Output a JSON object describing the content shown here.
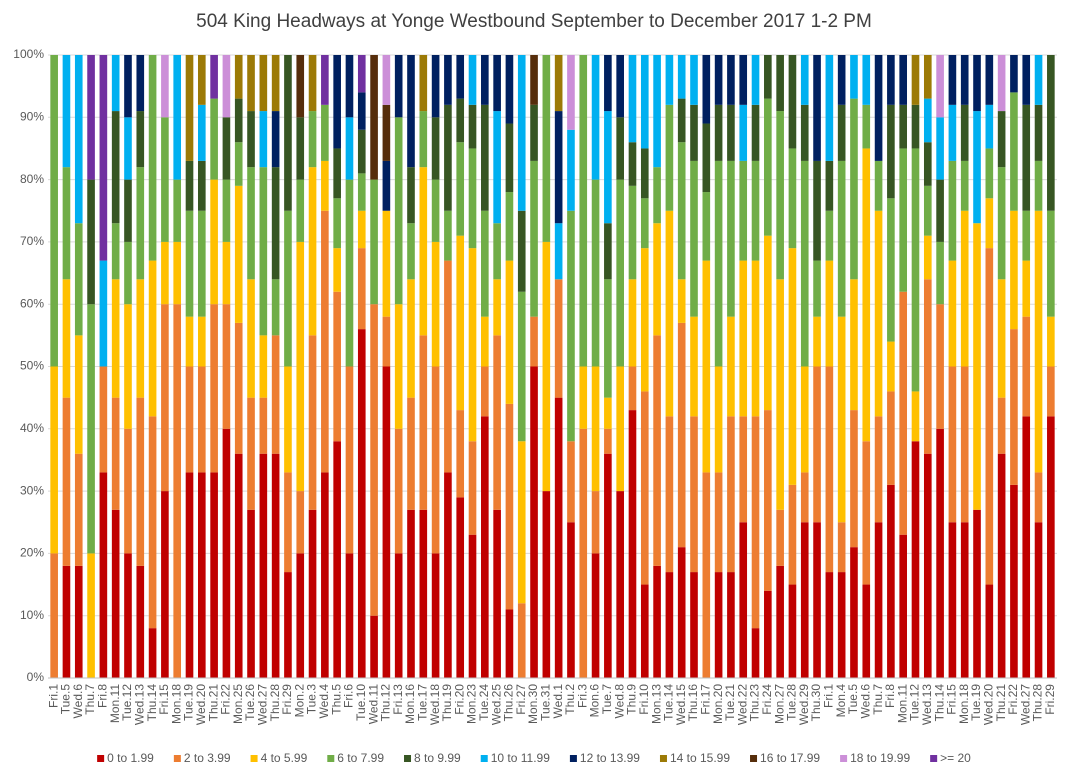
{
  "chart_data": {
    "type": "stacked_bar_100",
    "title": "504 King Headways at Yonge Westbound September to December 2017 1-2 PM",
    "categories": [
      "Fri.1",
      "Tue.5",
      "Wed.6",
      "Thu.7",
      "Fri.8",
      "Mon.11",
      "Tue.12",
      "Wed.13",
      "Thu.14",
      "Fri.15",
      "Mon.18",
      "Tue.19",
      "Wed.20",
      "Thu.21",
      "Fri.22",
      "Mon.25",
      "Tue.26",
      "Wed.27",
      "Thu.28",
      "Fri.29",
      "Mon.2",
      "Tue.3",
      "Wed.4",
      "Thu.5",
      "Fri.6",
      "Tue.10",
      "Wed.11",
      "Thu.12",
      "Fri.13",
      "Mon.16",
      "Tue.17",
      "Wed.18",
      "Thu.19",
      "Fri.20",
      "Mon.23",
      "Tue.24",
      "Wed.25",
      "Thu.26",
      "Fri.27",
      "Mon.30",
      "Tue.31",
      "Wed.1",
      "Thu.2",
      "Fri.3",
      "Mon.6",
      "Tue.7",
      "Wed.8",
      "Thu.9",
      "Fri.10",
      "Mon.13",
      "Tue.14",
      "Wed.15",
      "Thu.16",
      "Fri.17",
      "Mon.20",
      "Tue.21",
      "Wed.22",
      "Thu.23",
      "Fri.24",
      "Mon.27",
      "Tue.28",
      "Wed.29",
      "Thu.30",
      "Fri.1",
      "Mon.4",
      "Tue.5",
      "Wed.6",
      "Thu.7",
      "Fri.8",
      "Mon.11",
      "Tue.12",
      "Wed.13",
      "Thu.14",
      "Fri.15",
      "Mon.18",
      "Tue.19",
      "Wed.20",
      "Thu.21",
      "Fri.22",
      "Wed.27",
      "Thu.28",
      "Fri.29"
    ],
    "series": [
      {
        "name": "0 to 1.99",
        "color": "#c00000",
        "values": [
          0,
          18,
          18,
          0,
          33,
          27,
          20,
          18,
          8,
          30,
          0,
          33,
          33,
          33,
          40,
          36,
          27,
          36,
          36,
          17,
          20,
          27,
          33,
          38,
          20,
          56,
          10,
          50,
          20,
          27,
          27,
          20,
          33,
          29,
          23,
          42,
          27,
          11,
          0,
          50,
          30,
          45,
          25,
          0,
          20,
          36,
          30,
          43,
          15,
          18,
          17,
          21,
          17,
          0,
          17,
          17,
          25,
          8,
          14,
          18,
          15,
          25,
          25,
          17,
          17,
          21,
          15,
          25,
          31,
          23,
          38,
          36,
          40,
          25,
          25,
          27,
          15,
          36,
          31,
          42,
          25,
          42
        ]
      },
      {
        "name": "2 to 3.99",
        "color": "#ed7d31",
        "values": [
          20,
          27,
          18,
          0,
          17,
          18,
          20,
          27,
          34,
          30,
          60,
          17,
          17,
          27,
          20,
          21,
          18,
          9,
          19,
          16,
          10,
          28,
          42,
          24,
          30,
          13,
          50,
          8,
          20,
          18,
          28,
          30,
          34,
          14,
          15,
          8,
          28,
          33,
          12,
          8,
          0,
          19,
          13,
          40,
          10,
          4,
          0,
          7,
          31,
          37,
          25,
          36,
          25,
          33,
          16,
          25,
          17,
          34,
          29,
          9,
          16,
          8,
          25,
          33,
          8,
          22,
          23,
          17,
          15,
          39,
          0,
          28,
          20,
          25,
          25,
          0,
          54,
          9,
          25,
          16,
          8,
          8
        ]
      },
      {
        "name": "4 to 5.99",
        "color": "#ffc000",
        "values": [
          30,
          19,
          19,
          20,
          0,
          19,
          20,
          19,
          25,
          10,
          10,
          8,
          8,
          20,
          10,
          22,
          19,
          10,
          0,
          17,
          40,
          27,
          8,
          7,
          0,
          6,
          0,
          17,
          20,
          19,
          27,
          20,
          0,
          28,
          31,
          8,
          9,
          23,
          26,
          0,
          40,
          0,
          0,
          10,
          20,
          5,
          20,
          14,
          23,
          18,
          33,
          7,
          16,
          34,
          17,
          16,
          25,
          25,
          28,
          37,
          38,
          17,
          8,
          17,
          33,
          21,
          47,
          33,
          8,
          0,
          8,
          7,
          0,
          17,
          25,
          46,
          8,
          19,
          19,
          9,
          42,
          8
        ]
      },
      {
        "name": "6 to 7.99",
        "color": "#70ad47",
        "values": [
          50,
          18,
          18,
          40,
          0,
          9,
          10,
          18,
          33,
          20,
          10,
          17,
          17,
          13,
          10,
          7,
          18,
          27,
          9,
          25,
          10,
          9,
          9,
          8,
          30,
          6,
          20,
          0,
          30,
          9,
          9,
          10,
          8,
          15,
          16,
          17,
          9,
          11,
          24,
          25,
          30,
          0,
          37,
          50,
          30,
          19,
          30,
          15,
          8,
          9,
          17,
          22,
          25,
          11,
          33,
          25,
          16,
          16,
          22,
          27,
          16,
          33,
          9,
          8,
          25,
          29,
          7,
          8,
          23,
          23,
          39,
          8,
          10,
          16,
          8,
          0,
          8,
          18,
          19,
          8,
          8,
          17
        ]
      },
      {
        "name": "8 to 9.99",
        "color": "#375623",
        "values": [
          0,
          0,
          0,
          20,
          0,
          18,
          10,
          9,
          0,
          0,
          0,
          8,
          8,
          0,
          10,
          7,
          9,
          0,
          18,
          25,
          10,
          0,
          0,
          8,
          0,
          7,
          0,
          0,
          0,
          9,
          0,
          10,
          17,
          7,
          7,
          17,
          0,
          11,
          13,
          9,
          0,
          0,
          0,
          0,
          0,
          9,
          10,
          7,
          8,
          0,
          0,
          7,
          9,
          11,
          9,
          9,
          0,
          9,
          7,
          9,
          15,
          9,
          16,
          8,
          9,
          0,
          0,
          0,
          15,
          7,
          7,
          7,
          10,
          0,
          9,
          0,
          0,
          9,
          0,
          17,
          9,
          25
        ]
      },
      {
        "name": "10 to 11.99",
        "color": "#00b0f0",
        "values": [
          0,
          18,
          27,
          0,
          17,
          9,
          10,
          0,
          0,
          0,
          20,
          0,
          9,
          0,
          0,
          0,
          0,
          9,
          0,
          0,
          0,
          0,
          0,
          0,
          10,
          0,
          0,
          0,
          0,
          0,
          0,
          0,
          0,
          0,
          8,
          0,
          18,
          0,
          25,
          0,
          0,
          9,
          13,
          0,
          20,
          18,
          0,
          14,
          15,
          18,
          8,
          7,
          8,
          0,
          0,
          0,
          9,
          8,
          0,
          0,
          0,
          8,
          0,
          17,
          0,
          7,
          8,
          0,
          0,
          0,
          0,
          7,
          10,
          9,
          0,
          18,
          7,
          0,
          0,
          0,
          8,
          0
        ]
      },
      {
        "name": "12 to 13.99",
        "color": "#002060",
        "values": [
          0,
          0,
          0,
          0,
          0,
          0,
          10,
          9,
          0,
          0,
          0,
          0,
          0,
          0,
          0,
          0,
          0,
          0,
          9,
          0,
          0,
          0,
          0,
          15,
          10,
          6,
          0,
          8,
          10,
          18,
          0,
          10,
          8,
          7,
          0,
          8,
          9,
          11,
          0,
          0,
          0,
          18,
          0,
          0,
          0,
          9,
          10,
          0,
          0,
          0,
          0,
          0,
          0,
          11,
          8,
          8,
          8,
          0,
          0,
          0,
          0,
          0,
          17,
          0,
          8,
          0,
          0,
          17,
          8,
          8,
          0,
          0,
          0,
          8,
          8,
          9,
          8,
          0,
          6,
          8,
          0,
          0
        ]
      },
      {
        "name": "14 to 15.99",
        "color": "#9c7a06",
        "values": [
          0,
          0,
          0,
          0,
          0,
          0,
          0,
          0,
          0,
          0,
          0,
          17,
          8,
          0,
          0,
          7,
          9,
          9,
          9,
          0,
          0,
          9,
          0,
          0,
          0,
          0,
          0,
          0,
          0,
          0,
          9,
          0,
          0,
          0,
          0,
          0,
          0,
          0,
          0,
          0,
          0,
          9,
          0,
          0,
          0,
          0,
          0,
          0,
          0,
          0,
          0,
          0,
          0,
          0,
          0,
          0,
          0,
          0,
          0,
          0,
          0,
          0,
          0,
          0,
          0,
          0,
          0,
          0,
          0,
          0,
          8,
          7,
          0,
          0,
          0,
          0,
          0,
          0,
          0,
          0,
          0,
          0
        ]
      },
      {
        "name": "16 to 17.99",
        "color": "#562d0b",
        "values": [
          0,
          0,
          0,
          0,
          0,
          0,
          0,
          0,
          0,
          0,
          0,
          0,
          0,
          0,
          0,
          0,
          0,
          0,
          0,
          0,
          10,
          0,
          0,
          0,
          0,
          0,
          20,
          9,
          0,
          0,
          0,
          0,
          0,
          0,
          0,
          0,
          0,
          0,
          0,
          8,
          0,
          0,
          0,
          0,
          0,
          0,
          0,
          0,
          0,
          0,
          0,
          0,
          0,
          0,
          0,
          0,
          0,
          0,
          0,
          0,
          0,
          0,
          0,
          0,
          0,
          0,
          0,
          0,
          0,
          0,
          0,
          0,
          0,
          0,
          0,
          0,
          0,
          0,
          0,
          0,
          0,
          0
        ]
      },
      {
        "name": "18 to 19.99",
        "color": "#cc8fd8",
        "values": [
          0,
          0,
          0,
          0,
          0,
          0,
          0,
          0,
          0,
          10,
          0,
          0,
          0,
          0,
          10,
          0,
          0,
          0,
          0,
          0,
          0,
          0,
          0,
          0,
          0,
          0,
          0,
          8,
          0,
          0,
          0,
          0,
          0,
          0,
          0,
          0,
          0,
          0,
          0,
          0,
          0,
          0,
          12,
          0,
          0,
          0,
          0,
          0,
          0,
          0,
          0,
          0,
          0,
          0,
          0,
          0,
          0,
          0,
          0,
          0,
          0,
          0,
          0,
          0,
          0,
          0,
          0,
          0,
          0,
          0,
          0,
          0,
          10,
          0,
          0,
          0,
          0,
          9,
          0,
          0,
          0,
          0
        ]
      },
      {
        "name": ">= 20",
        "color": "#7030a0",
        "values": [
          0,
          0,
          0,
          20,
          33,
          0,
          0,
          0,
          0,
          0,
          0,
          0,
          0,
          7,
          0,
          0,
          0,
          0,
          0,
          0,
          0,
          0,
          8,
          0,
          0,
          6,
          0,
          0,
          0,
          0,
          0,
          0,
          0,
          0,
          0,
          0,
          0,
          0,
          0,
          0,
          0,
          0,
          0,
          0,
          0,
          0,
          0,
          0,
          0,
          0,
          0,
          0,
          0,
          0,
          0,
          0,
          0,
          0,
          0,
          0,
          0,
          0,
          0,
          0,
          0,
          0,
          0,
          0,
          0,
          0,
          0,
          0,
          0,
          0,
          0,
          0,
          0,
          0,
          0,
          0,
          0,
          0
        ]
      }
    ],
    "ylim": [
      0,
      100
    ],
    "yticks": [
      {
        "value": 0,
        "label": "0%"
      },
      {
        "value": 10,
        "label": "10%"
      },
      {
        "value": 20,
        "label": "20%"
      },
      {
        "value": 30,
        "label": "30%"
      },
      {
        "value": 40,
        "label": "40%"
      },
      {
        "value": 50,
        "label": "50%"
      },
      {
        "value": 60,
        "label": "60%"
      },
      {
        "value": 70,
        "label": "70%"
      },
      {
        "value": 80,
        "label": "80%"
      },
      {
        "value": 90,
        "label": "90%"
      },
      {
        "value": 100,
        "label": "100%"
      }
    ],
    "grid": true,
    "legend": "bottom"
  }
}
